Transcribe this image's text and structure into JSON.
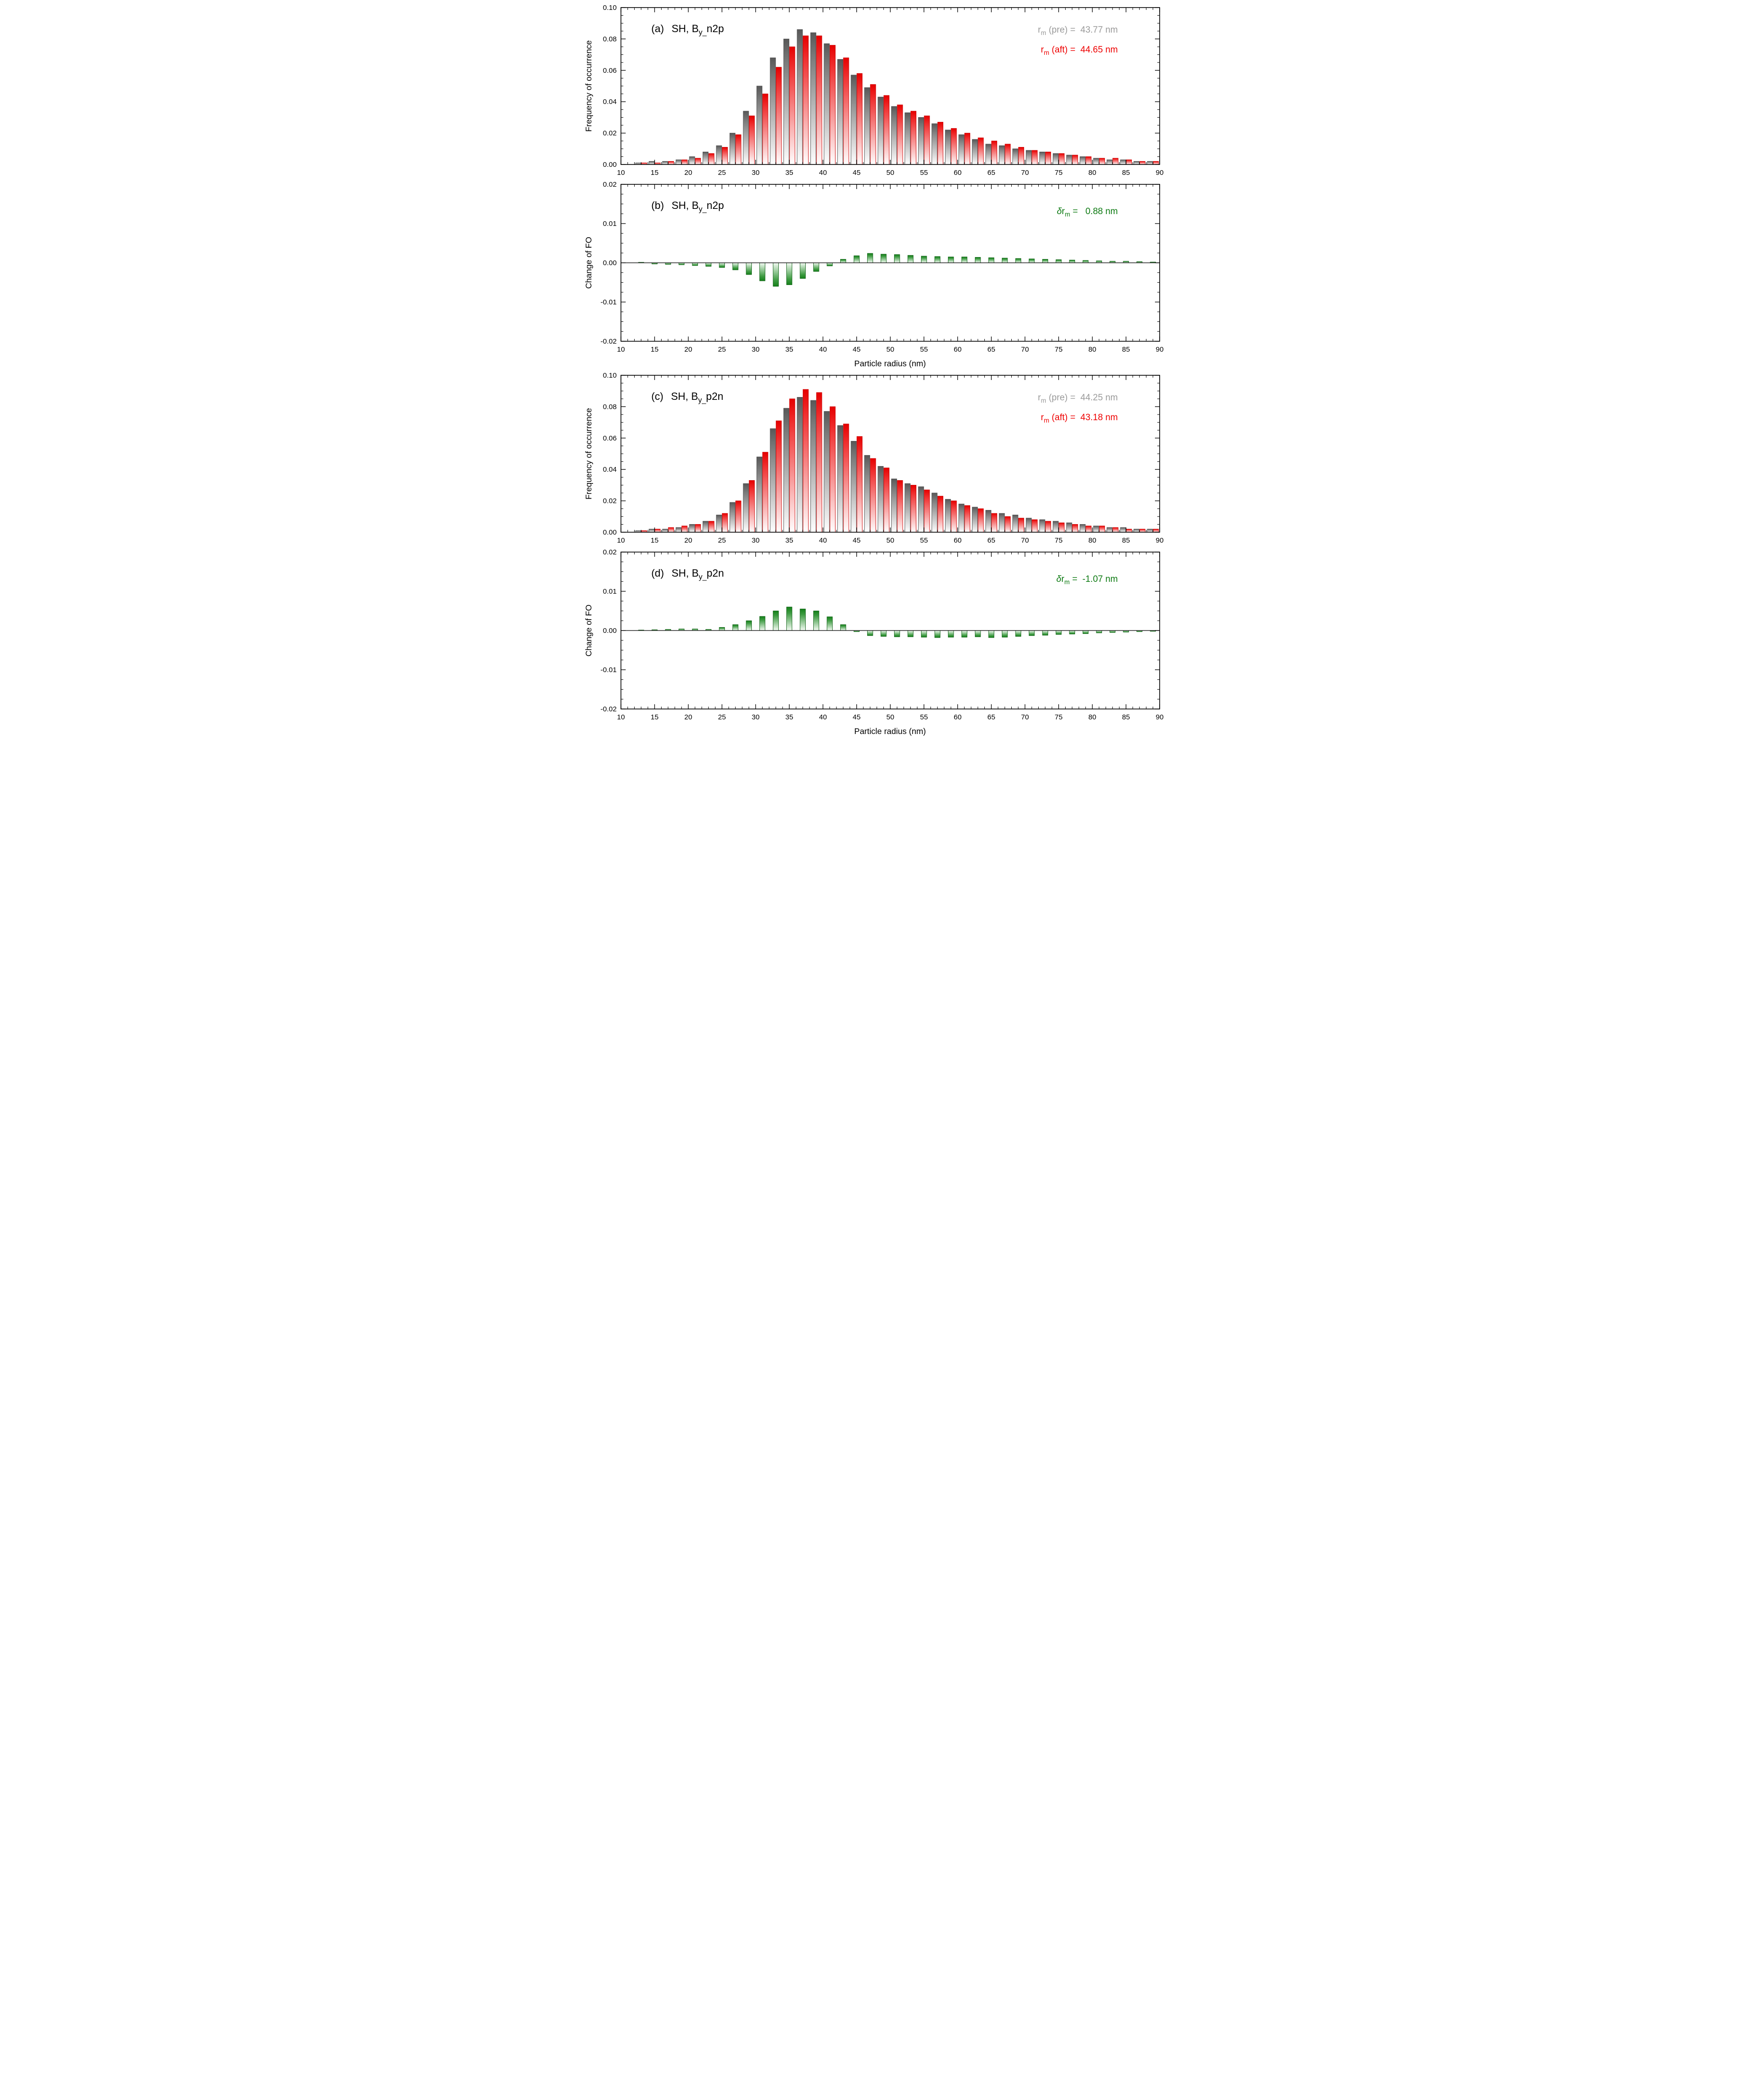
{
  "colors": {
    "pre": "#9a9a9a",
    "aft": "#ee0000",
    "delta": "#0d7a12",
    "bar_gray_top": "#585858",
    "bar_red_top": "#e60000",
    "bar_green_top": "#15801a",
    "axis": "#000000"
  },
  "xaxis_title": "Particle radius (nm)",
  "panels": [
    {
      "label": "(a)",
      "title_prefix": "SH, B",
      "title_sub": "y_",
      "title_rest": "n2p",
      "ylabel": "Frequency of occurrence",
      "anno": [
        {
          "sym": "r",
          "sub": "m",
          "mid": " (pre) =  ",
          "value": "43.77 nm"
        },
        {
          "sym": "r",
          "sub": "m",
          "mid": " (aft) =  ",
          "value": "44.65 nm"
        }
      ]
    },
    {
      "label": "(b)",
      "title_prefix": "SH, B",
      "title_sub": "y_",
      "title_rest": "n2p",
      "ylabel": "Change of FO",
      "xlabel": "Particle radius (nm)",
      "anno": [
        {
          "it": "δ",
          "sym": "r",
          "sub": "m",
          "mid": " =   ",
          "value": "0.88 nm"
        }
      ]
    },
    {
      "label": "(c)",
      "title_prefix": "SH, B",
      "title_sub": "y_",
      "title_rest": "p2n",
      "ylabel": "Frequency of occurrence",
      "anno": [
        {
          "sym": "r",
          "sub": "m",
          "mid": " (pre) =  ",
          "value": "44.25 nm"
        },
        {
          "sym": "r",
          "sub": "m",
          "mid": " (aft) =  ",
          "value": "43.18 nm"
        }
      ]
    },
    {
      "label": "(d)",
      "title_prefix": "SH, B",
      "title_sub": "y_",
      "title_rest": "p2n",
      "ylabel": "Change of FO",
      "xlabel": "Particle radius (nm)",
      "anno": [
        {
          "it": "δ",
          "sym": "r",
          "sub": "m",
          "mid": " =  ",
          "value": "-1.07 nm"
        }
      ]
    }
  ],
  "chart_data": [
    {
      "type": "bar",
      "panel": "a",
      "title": "(a) SH, By_n2p",
      "xlabel": "",
      "ylabel": "Frequency of occurrence",
      "xlim": [
        10,
        90
      ],
      "ylim": [
        0,
        0.1
      ],
      "xticks": [
        10,
        15,
        20,
        25,
        30,
        35,
        40,
        45,
        50,
        55,
        60,
        65,
        70,
        75,
        80,
        85,
        90
      ],
      "yticks": [
        0.0,
        0.02,
        0.04,
        0.06,
        0.08,
        0.1
      ],
      "xminor": 1,
      "yminor": 0.005,
      "x": [
        13,
        15,
        17,
        19,
        21,
        23,
        25,
        27,
        29,
        31,
        33,
        35,
        37,
        39,
        41,
        43,
        45,
        47,
        49,
        51,
        53,
        55,
        57,
        59,
        61,
        63,
        65,
        67,
        69,
        71,
        73,
        75,
        77,
        79,
        81,
        83,
        85,
        87,
        89
      ],
      "series": [
        {
          "name": "pre",
          "legend": "rm (pre) = 43.77 nm",
          "values": [
            0.001,
            0.002,
            0.002,
            0.003,
            0.005,
            0.008,
            0.012,
            0.02,
            0.034,
            0.05,
            0.068,
            0.08,
            0.086,
            0.084,
            0.077,
            0.067,
            0.057,
            0.049,
            0.043,
            0.037,
            0.033,
            0.03,
            0.026,
            0.022,
            0.019,
            0.016,
            0.013,
            0.012,
            0.01,
            0.009,
            0.008,
            0.007,
            0.006,
            0.005,
            0.004,
            0.003,
            0.003,
            0.002,
            0.002
          ]
        },
        {
          "name": "aft",
          "legend": "rm (aft) = 44.65 nm",
          "values": [
            0.001,
            0.001,
            0.002,
            0.003,
            0.004,
            0.007,
            0.011,
            0.019,
            0.031,
            0.045,
            0.062,
            0.075,
            0.082,
            0.082,
            0.076,
            0.068,
            0.058,
            0.051,
            0.044,
            0.038,
            0.034,
            0.031,
            0.027,
            0.023,
            0.02,
            0.017,
            0.015,
            0.013,
            0.011,
            0.009,
            0.008,
            0.007,
            0.006,
            0.005,
            0.004,
            0.004,
            0.003,
            0.002,
            0.002
          ]
        }
      ]
    },
    {
      "type": "bar",
      "panel": "b",
      "title": "(b) SH, By_n2p",
      "xlabel": "Particle radius (nm)",
      "ylabel": "Change of FO",
      "annotation": "δrm = 0.88 nm",
      "xlim": [
        10,
        90
      ],
      "ylim": [
        -0.02,
        0.02
      ],
      "xticks": [
        10,
        15,
        20,
        25,
        30,
        35,
        40,
        45,
        50,
        55,
        60,
        65,
        70,
        75,
        80,
        85,
        90
      ],
      "yticks": [
        -0.02,
        -0.01,
        0.0,
        0.01,
        0.02
      ],
      "xminor": 1,
      "yminor": 0.0025,
      "x": [
        13,
        15,
        17,
        19,
        21,
        23,
        25,
        27,
        29,
        31,
        33,
        35,
        37,
        39,
        41,
        43,
        45,
        47,
        49,
        51,
        53,
        55,
        57,
        59,
        61,
        63,
        65,
        67,
        69,
        71,
        73,
        75,
        77,
        79,
        81,
        83,
        85,
        87,
        89
      ],
      "values": [
        0.0,
        -0.0003,
        -0.0004,
        -0.0005,
        -0.0007,
        -0.0009,
        -0.0012,
        -0.0018,
        -0.003,
        -0.0046,
        -0.006,
        -0.0056,
        -0.004,
        -0.0022,
        -0.0008,
        0.0009,
        0.0018,
        0.0024,
        0.0022,
        0.0021,
        0.0019,
        0.0017,
        0.0016,
        0.0015,
        0.0015,
        0.0014,
        0.0013,
        0.0012,
        0.0011,
        0.001,
        0.0009,
        0.0008,
        0.0007,
        0.0006,
        0.0005,
        0.0004,
        0.0004,
        0.0003,
        0.0002
      ]
    },
    {
      "type": "bar",
      "panel": "c",
      "title": "(c) SH, By_p2n",
      "xlabel": "",
      "ylabel": "Frequency of occurrence",
      "xlim": [
        10,
        90
      ],
      "ylim": [
        0,
        0.1
      ],
      "xticks": [
        10,
        15,
        20,
        25,
        30,
        35,
        40,
        45,
        50,
        55,
        60,
        65,
        70,
        75,
        80,
        85,
        90
      ],
      "yticks": [
        0.0,
        0.02,
        0.04,
        0.06,
        0.08,
        0.1
      ],
      "xminor": 1,
      "yminor": 0.005,
      "x": [
        13,
        15,
        17,
        19,
        21,
        23,
        25,
        27,
        29,
        31,
        33,
        35,
        37,
        39,
        41,
        43,
        45,
        47,
        49,
        51,
        53,
        55,
        57,
        59,
        61,
        63,
        65,
        67,
        69,
        71,
        73,
        75,
        77,
        79,
        81,
        83,
        85,
        87,
        89
      ],
      "series": [
        {
          "name": "pre",
          "legend": "rm (pre) = 44.25 nm",
          "values": [
            0.001,
            0.002,
            0.002,
            0.003,
            0.005,
            0.007,
            0.011,
            0.019,
            0.031,
            0.048,
            0.066,
            0.079,
            0.086,
            0.084,
            0.077,
            0.068,
            0.058,
            0.049,
            0.042,
            0.034,
            0.031,
            0.029,
            0.025,
            0.021,
            0.018,
            0.016,
            0.014,
            0.012,
            0.011,
            0.009,
            0.008,
            0.007,
            0.006,
            0.005,
            0.004,
            0.003,
            0.003,
            0.002,
            0.002
          ]
        },
        {
          "name": "aft",
          "legend": "rm (aft) = 43.18 nm",
          "values": [
            0.001,
            0.002,
            0.003,
            0.004,
            0.005,
            0.007,
            0.012,
            0.02,
            0.033,
            0.051,
            0.071,
            0.085,
            0.091,
            0.089,
            0.08,
            0.069,
            0.061,
            0.047,
            0.041,
            0.033,
            0.03,
            0.027,
            0.023,
            0.02,
            0.017,
            0.015,
            0.012,
            0.01,
            0.009,
            0.008,
            0.007,
            0.006,
            0.005,
            0.004,
            0.004,
            0.003,
            0.002,
            0.002,
            0.002
          ]
        }
      ]
    },
    {
      "type": "bar",
      "panel": "d",
      "title": "(d) SH, By_p2n",
      "xlabel": "Particle radius (nm)",
      "ylabel": "Change of FO",
      "annotation": "δrm = -1.07 nm",
      "xlim": [
        10,
        90
      ],
      "ylim": [
        -0.02,
        0.02
      ],
      "xticks": [
        10,
        15,
        20,
        25,
        30,
        35,
        40,
        45,
        50,
        55,
        60,
        65,
        70,
        75,
        80,
        85,
        90
      ],
      "yticks": [
        -0.02,
        -0.01,
        0.0,
        0.01,
        0.02
      ],
      "xminor": 1,
      "yminor": 0.0025,
      "x": [
        13,
        15,
        17,
        19,
        21,
        23,
        25,
        27,
        29,
        31,
        33,
        35,
        37,
        39,
        41,
        43,
        45,
        47,
        49,
        51,
        53,
        55,
        57,
        59,
        61,
        63,
        65,
        67,
        69,
        71,
        73,
        75,
        77,
        79,
        81,
        83,
        85,
        87,
        89
      ],
      "values": [
        0.0,
        0.0002,
        0.0003,
        0.0004,
        0.0004,
        0.0003,
        0.0008,
        0.0015,
        0.0025,
        0.0036,
        0.005,
        0.006,
        0.0055,
        0.005,
        0.0035,
        0.0015,
        -0.0003,
        -0.0013,
        -0.0015,
        -0.0016,
        -0.0016,
        -0.0017,
        -0.0018,
        -0.0017,
        -0.0017,
        -0.0016,
        -0.0018,
        -0.0017,
        -0.0015,
        -0.0013,
        -0.0012,
        -0.001,
        -0.0009,
        -0.0008,
        -0.0006,
        -0.0005,
        -0.0004,
        -0.0003,
        -0.0002
      ]
    }
  ]
}
